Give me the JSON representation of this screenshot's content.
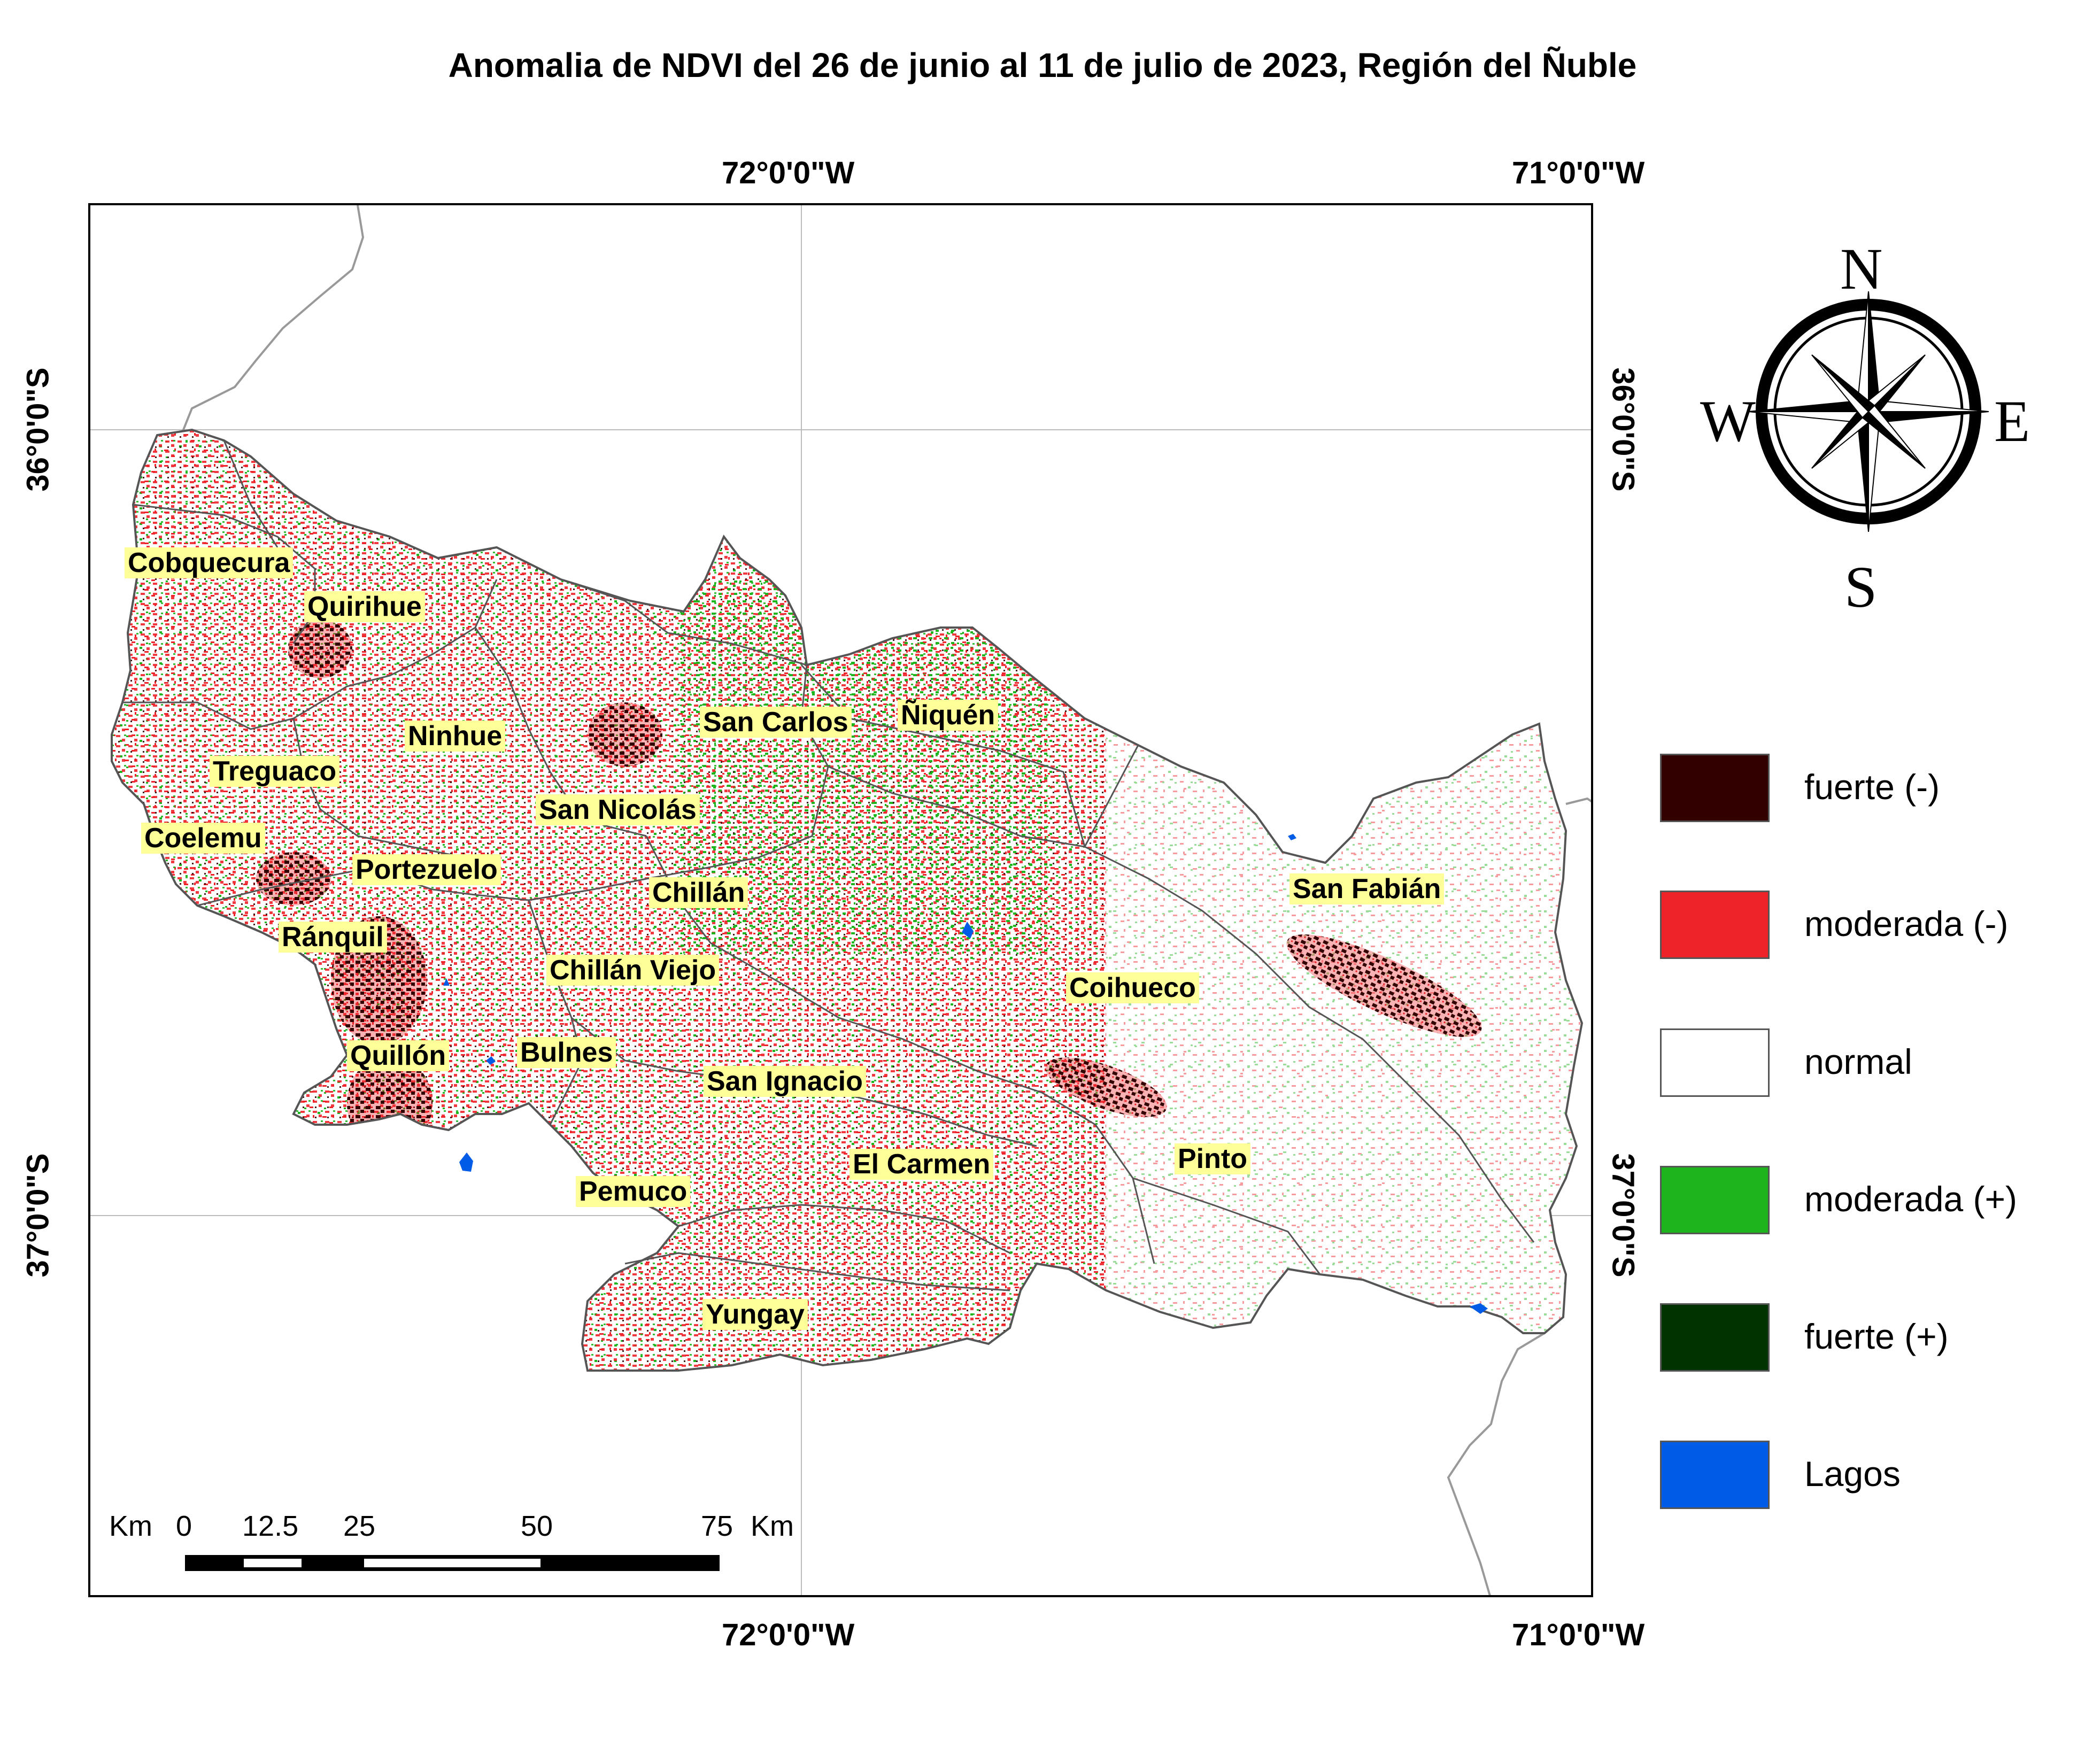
{
  "title": "Anomalia de NDVI del 26 de junio al 11 de julio de 2023, Región del Ñuble",
  "graticule": {
    "lon_labels": [
      "72°0'0\"W",
      "71°0'0\"W"
    ],
    "lat_labels": [
      "36°0'0\"S",
      "37°0'0\"S"
    ]
  },
  "legend": {
    "items": [
      {
        "label": "fuerte (-)",
        "color": "#330000"
      },
      {
        "label": "moderada (-)",
        "color": "#ee2229"
      },
      {
        "label": "normal",
        "color": "#ffffff"
      },
      {
        "label": "moderada (+)",
        "color": "#1eb41e"
      },
      {
        "label": "fuerte (+)",
        "color": "#003300"
      },
      {
        "label": "Lagos",
        "color": "#005be6"
      }
    ]
  },
  "scale_bar": {
    "unit_left": "Km",
    "ticks": [
      "0",
      "12.5",
      "25",
      "50",
      "75"
    ],
    "unit_right": "Km"
  },
  "compass": {
    "n": "N",
    "s": "S",
    "e": "E",
    "w": "W"
  },
  "places": [
    "Cobquecura",
    "Quirihue",
    "Ninhue",
    "Treguaco",
    "Coelemu",
    "Portezuelo",
    "Ránquil",
    "Quillón",
    "Bulnes",
    "Chillán Viejo",
    "Chillán",
    "San Nicolás",
    "San Carlos",
    "Ñiquén",
    "San Fabián",
    "Coihueco",
    "San Ignacio",
    "El Carmen",
    "Pinto",
    "Pemuco",
    "Yungay"
  ]
}
